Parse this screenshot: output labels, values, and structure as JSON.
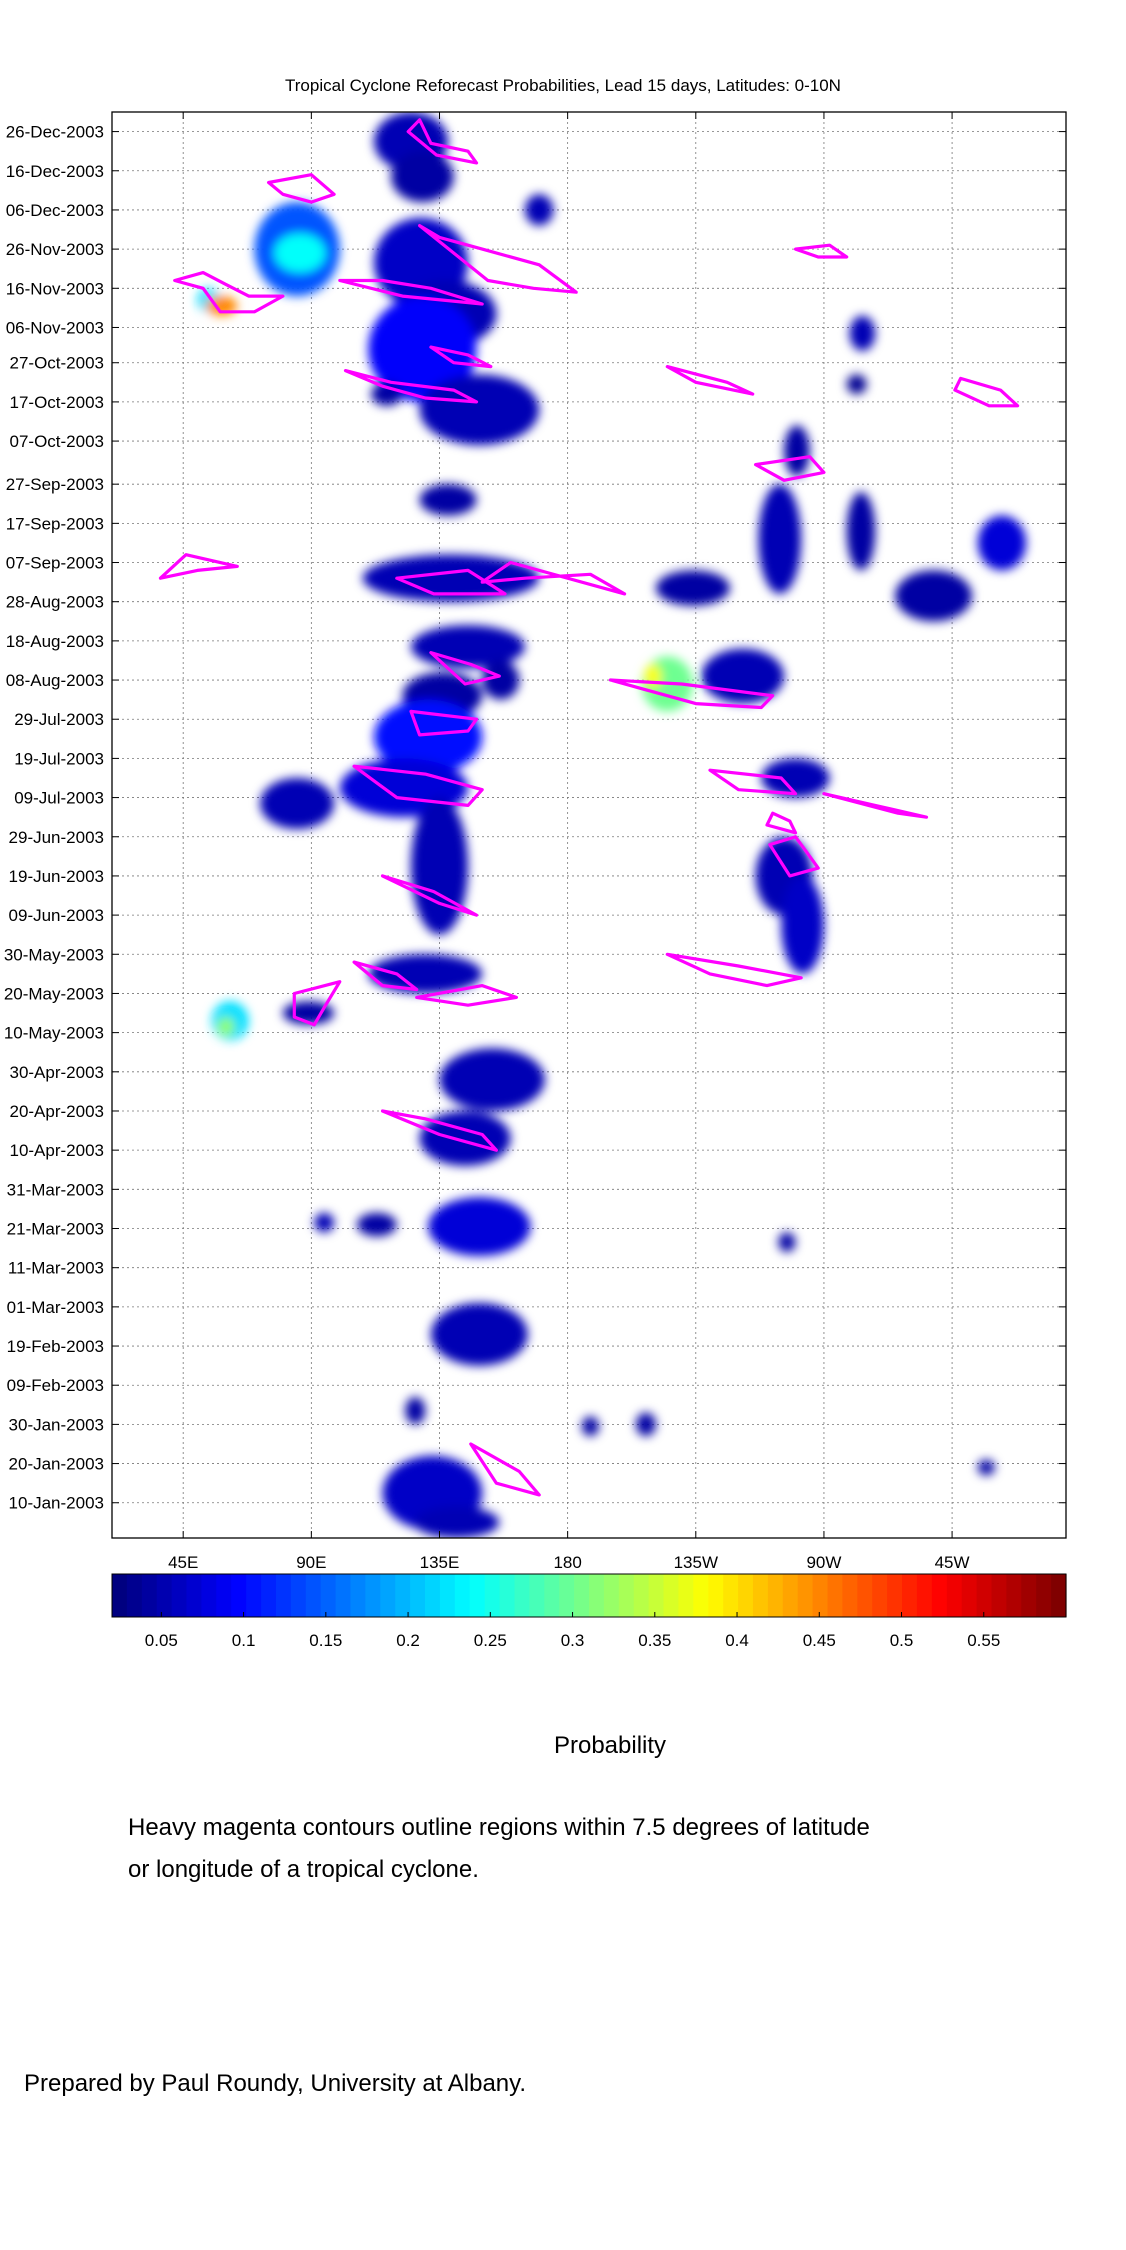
{
  "chart_data": {
    "type": "heatmap",
    "title": "Tropical Cyclone Reforecast Probabilities, Lead 15 days, Latitudes: 0-10N",
    "ylabel": "",
    "xlabel": "",
    "x_ticks": [
      "45E",
      "90E",
      "135E",
      "180",
      "135W",
      "90W",
      "45W"
    ],
    "x_tick_lon": [
      45,
      90,
      135,
      180,
      225,
      270,
      315
    ],
    "xlim_lon": [
      20,
      355
    ],
    "y_ticks": [
      "26-Dec-2003",
      "16-Dec-2003",
      "06-Dec-2003",
      "26-Nov-2003",
      "16-Nov-2003",
      "06-Nov-2003",
      "27-Oct-2003",
      "17-Oct-2003",
      "07-Oct-2003",
      "27-Sep-2003",
      "17-Sep-2003",
      "07-Sep-2003",
      "28-Aug-2003",
      "18-Aug-2003",
      "08-Aug-2003",
      "29-Jul-2003",
      "19-Jul-2003",
      "09-Jul-2003",
      "29-Jun-2003",
      "19-Jun-2003",
      "09-Jun-2003",
      "30-May-2003",
      "20-May-2003",
      "10-May-2003",
      "30-Apr-2003",
      "20-Apr-2003",
      "10-Apr-2003",
      "31-Mar-2003",
      "21-Mar-2003",
      "11-Mar-2003",
      "01-Mar-2003",
      "19-Feb-2003",
      "09-Feb-2003",
      "30-Jan-2003",
      "20-Jan-2003",
      "10-Jan-2003"
    ],
    "y_tick_day": [
      360,
      350,
      340,
      330,
      320,
      310,
      301,
      291,
      281,
      270,
      260,
      250,
      240,
      230,
      220,
      210,
      200,
      190,
      180,
      170,
      160,
      150,
      140,
      130,
      120,
      110,
      100,
      90,
      80,
      70,
      60,
      50,
      40,
      30,
      20,
      10
    ],
    "ylim_day": [
      1,
      365
    ],
    "colorbar": {
      "label": "Probability",
      "ticks": [
        "0.05",
        "0.1",
        "0.15",
        "0.2",
        "0.25",
        "0.3",
        "0.35",
        "0.4",
        "0.45",
        "0.5",
        "0.55"
      ],
      "tick_values": [
        0.05,
        0.1,
        0.15,
        0.2,
        0.25,
        0.3,
        0.35,
        0.4,
        0.45,
        0.5,
        0.55
      ],
      "range": [
        0.02,
        0.6
      ]
    },
    "contour_color": "#ff00ff",
    "grid": true,
    "blobs": [
      {
        "lon": [
          112,
          138
        ],
        "day": [
          350,
          365
        ],
        "p": 0.05
      },
      {
        "lon": [
          118,
          140
        ],
        "day": [
          342,
          355
        ],
        "p": 0.04
      },
      {
        "lon": [
          165,
          175
        ],
        "day": [
          336,
          344
        ],
        "p": 0.05
      },
      {
        "lon": [
          70,
          100
        ],
        "day": [
          318,
          342
        ],
        "p": 0.14
      },
      {
        "lon": [
          112,
          145
        ],
        "day": [
          315,
          338
        ],
        "p": 0.06
      },
      {
        "lon": [
          120,
          155
        ],
        "day": [
          305,
          322
        ],
        "p": 0.05
      },
      {
        "lon": [
          110,
          148
        ],
        "day": [
          291,
          318
        ],
        "p": 0.09
      },
      {
        "lon": [
          128,
          170
        ],
        "day": [
          280,
          298
        ],
        "p": 0.05
      },
      {
        "lon": [
          111,
          122
        ],
        "day": [
          290,
          296
        ],
        "p": 0.04
      },
      {
        "lon": [
          128,
          148
        ],
        "day": [
          262,
          270
        ],
        "p": 0.04
      },
      {
        "lon": [
          108,
          170
        ],
        "day": [
          240,
          252
        ],
        "p": 0.05
      },
      {
        "lon": [
          125,
          165
        ],
        "day": [
          223,
          234
        ],
        "p": 0.05
      },
      {
        "lon": [
          150,
          163
        ],
        "day": [
          215,
          225
        ],
        "p": 0.04
      },
      {
        "lon": [
          122,
          150
        ],
        "day": [
          210,
          222
        ],
        "p": 0.04
      },
      {
        "lon": [
          112,
          150
        ],
        "day": [
          196,
          215
        ],
        "p": 0.1
      },
      {
        "lon": [
          100,
          145
        ],
        "day": [
          185,
          200
        ],
        "p": 0.07
      },
      {
        "lon": [
          125,
          145
        ],
        "day": [
          155,
          190
        ],
        "p": 0.05
      },
      {
        "lon": [
          72,
          98
        ],
        "day": [
          182,
          195
        ],
        "p": 0.05
      },
      {
        "lon": [
          246,
          266
        ],
        "day": [
          160,
          180
        ],
        "p": 0.05
      },
      {
        "lon": [
          248,
          272
        ],
        "day": [
          190,
          200
        ],
        "p": 0.05
      },
      {
        "lon": [
          255,
          270
        ],
        "day": [
          145,
          170
        ],
        "p": 0.06
      },
      {
        "lon": [
          206,
          224
        ],
        "day": [
          212,
          226
        ],
        "p": 0.3
      },
      {
        "lon": [
          227,
          256
        ],
        "day": [
          214,
          228
        ],
        "p": 0.05
      },
      {
        "lon": [
          247,
          262
        ],
        "day": [
          242,
          270
        ],
        "p": 0.05
      },
      {
        "lon": [
          256,
          265
        ],
        "day": [
          272,
          285
        ],
        "p": 0.04
      },
      {
        "lon": [
          324,
          341
        ],
        "day": [
          248,
          262
        ],
        "p": 0.07
      },
      {
        "lon": [
          295,
          322
        ],
        "day": [
          235,
          248
        ],
        "p": 0.04
      },
      {
        "lon": [
          278,
          288
        ],
        "day": [
          248,
          268
        ],
        "p": 0.04
      },
      {
        "lon": [
          211,
          237
        ],
        "day": [
          239,
          248
        ],
        "p": 0.04
      },
      {
        "lon": [
          279,
          288
        ],
        "day": [
          304,
          313
        ],
        "p": 0.05
      },
      {
        "lon": [
          278,
          285
        ],
        "day": [
          293,
          298
        ],
        "p": 0.03
      },
      {
        "lon": [
          110,
          150
        ],
        "day": [
          140,
          150
        ],
        "p": 0.05
      },
      {
        "lon": [
          55,
          68
        ],
        "day": [
          128,
          138
        ],
        "p": 0.22
      },
      {
        "lon": [
          80,
          98
        ],
        "day": [
          132,
          138
        ],
        "p": 0.04
      },
      {
        "lon": [
          135,
          172
        ],
        "day": [
          110,
          126
        ],
        "p": 0.05
      },
      {
        "lon": [
          128,
          160
        ],
        "day": [
          96,
          110
        ],
        "p": 0.05
      },
      {
        "lon": [
          131,
          167
        ],
        "day": [
          73,
          88
        ],
        "p": 0.07
      },
      {
        "lon": [
          106,
          120
        ],
        "day": [
          78,
          84
        ],
        "p": 0.04
      },
      {
        "lon": [
          91,
          98
        ],
        "day": [
          79,
          84
        ],
        "p": 0.05
      },
      {
        "lon": [
          132,
          166
        ],
        "day": [
          45,
          61
        ],
        "p": 0.05
      },
      {
        "lon": [
          123,
          130
        ],
        "day": [
          30,
          37
        ],
        "p": 0.04
      },
      {
        "lon": [
          115,
          150
        ],
        "day": [
          3,
          22
        ],
        "p": 0.06
      },
      {
        "lon": [
          126,
          156
        ],
        "day": [
          1,
          9
        ],
        "p": 0.05
      },
      {
        "lon": [
          50,
          58
        ],
        "day": [
          314,
          320
        ],
        "p": 0.22
      },
      {
        "lon": [
          53,
          64
        ],
        "day": [
          313,
          318
        ],
        "p": 0.45
      },
      {
        "lon": [
          77,
          95
        ],
        "day": [
          324,
          334
        ],
        "p": 0.24
      },
      {
        "lon": [
          207,
          213
        ],
        "day": [
          218,
          224
        ],
        "p": 0.38
      },
      {
        "lon": [
          57,
          63
        ],
        "day": [
          129,
          134
        ],
        "p": 0.32
      },
      {
        "lon": [
          254,
          260
        ],
        "day": [
          74,
          79
        ],
        "p": 0.04
      },
      {
        "lon": [
          204,
          211
        ],
        "day": [
          27,
          33
        ],
        "p": 0.04
      },
      {
        "lon": [
          185,
          191
        ],
        "day": [
          27,
          32
        ],
        "p": 0.04
      },
      {
        "lon": [
          324,
          330
        ],
        "day": [
          17,
          21
        ],
        "p": 0.04
      }
    ],
    "cyclone_contours": [
      [
        [
          124,
          360
        ],
        [
          128,
          363
        ],
        [
          132,
          357
        ],
        [
          145,
          355
        ],
        [
          148,
          352
        ],
        [
          134,
          354
        ]
      ],
      [
        [
          75,
          347
        ],
        [
          90,
          349
        ],
        [
          98,
          344
        ],
        [
          90,
          342
        ],
        [
          80,
          344
        ]
      ],
      [
        [
          128,
          336
        ],
        [
          152,
          322
        ],
        [
          168,
          320
        ],
        [
          183,
          319
        ],
        [
          170,
          326
        ],
        [
          150,
          330
        ],
        [
          135,
          333
        ]
      ],
      [
        [
          42,
          322
        ],
        [
          52,
          320
        ],
        [
          58,
          314
        ],
        [
          70,
          314
        ],
        [
          80,
          318
        ],
        [
          68,
          318
        ],
        [
          60,
          321
        ],
        [
          52,
          324
        ]
      ],
      [
        [
          100,
          322
        ],
        [
          122,
          318
        ],
        [
          150,
          316
        ],
        [
          132,
          320
        ],
        [
          115,
          322
        ]
      ],
      [
        [
          102,
          299
        ],
        [
          118,
          296
        ],
        [
          140,
          294
        ],
        [
          148,
          291
        ],
        [
          130,
          292
        ],
        [
          115,
          295
        ]
      ],
      [
        [
          132,
          305
        ],
        [
          145,
          303
        ],
        [
          153,
          300
        ],
        [
          140,
          301
        ]
      ],
      [
        [
          215,
          300
        ],
        [
          236,
          296
        ],
        [
          245,
          293
        ],
        [
          225,
          296
        ]
      ],
      [
        [
          260,
          330
        ],
        [
          272,
          331
        ],
        [
          278,
          328
        ],
        [
          268,
          328
        ]
      ],
      [
        [
          318,
          297
        ],
        [
          332,
          294
        ],
        [
          338,
          290
        ],
        [
          328,
          290
        ],
        [
          316,
          294
        ]
      ],
      [
        [
          246,
          275
        ],
        [
          265,
          277
        ],
        [
          270,
          273
        ],
        [
          256,
          271
        ]
      ],
      [
        [
          150,
          245
        ],
        [
          160,
          250
        ],
        [
          200,
          242
        ],
        [
          188,
          247
        ],
        [
          165,
          246
        ]
      ],
      [
        [
          37,
          246
        ],
        [
          46,
          252
        ],
        [
          64,
          249
        ],
        [
          50,
          248
        ]
      ],
      [
        [
          120,
          246
        ],
        [
          145,
          248
        ],
        [
          158,
          242
        ],
        [
          133,
          242
        ]
      ],
      [
        [
          132,
          227
        ],
        [
          146,
          224
        ],
        [
          156,
          221
        ],
        [
          144,
          219
        ]
      ],
      [
        [
          195,
          220
        ],
        [
          220,
          219
        ],
        [
          252,
          216
        ],
        [
          248,
          213
        ],
        [
          225,
          214
        ]
      ],
      [
        [
          125,
          212
        ],
        [
          148,
          210
        ],
        [
          145,
          207
        ],
        [
          128,
          206
        ]
      ],
      [
        [
          105,
          198
        ],
        [
          130,
          196
        ],
        [
          150,
          192
        ],
        [
          145,
          188
        ],
        [
          120,
          190
        ]
      ],
      [
        [
          230,
          197
        ],
        [
          255,
          195
        ],
        [
          260,
          191
        ],
        [
          240,
          192
        ]
      ],
      [
        [
          252,
          186
        ],
        [
          258,
          184
        ],
        [
          260,
          181
        ],
        [
          250,
          183
        ]
      ],
      [
        [
          270,
          191
        ],
        [
          288,
          188
        ],
        [
          306,
          185
        ],
        [
          296,
          186
        ]
      ],
      [
        [
          251,
          178
        ],
        [
          260,
          180
        ],
        [
          268,
          172
        ],
        [
          258,
          170
        ]
      ],
      [
        [
          115,
          170
        ],
        [
          135,
          163
        ],
        [
          148,
          160
        ],
        [
          133,
          166
        ]
      ],
      [
        [
          105,
          148
        ],
        [
          120,
          145
        ],
        [
          127,
          141
        ],
        [
          115,
          142
        ]
      ],
      [
        [
          127,
          139
        ],
        [
          150,
          142
        ],
        [
          162,
          139
        ],
        [
          145,
          137
        ]
      ],
      [
        [
          84,
          140
        ],
        [
          100,
          143
        ],
        [
          95,
          137
        ],
        [
          91,
          132
        ],
        [
          84,
          134
        ]
      ],
      [
        [
          215,
          150
        ],
        [
          240,
          147
        ],
        [
          262,
          144
        ],
        [
          250,
          142
        ],
        [
          230,
          145
        ]
      ],
      [
        [
          115,
          110
        ],
        [
          135,
          104
        ],
        [
          155,
          100
        ],
        [
          150,
          104
        ],
        [
          130,
          108
        ]
      ],
      [
        [
          146,
          25
        ],
        [
          163,
          18
        ],
        [
          170,
          12
        ],
        [
          155,
          15
        ]
      ]
    ]
  }
}
